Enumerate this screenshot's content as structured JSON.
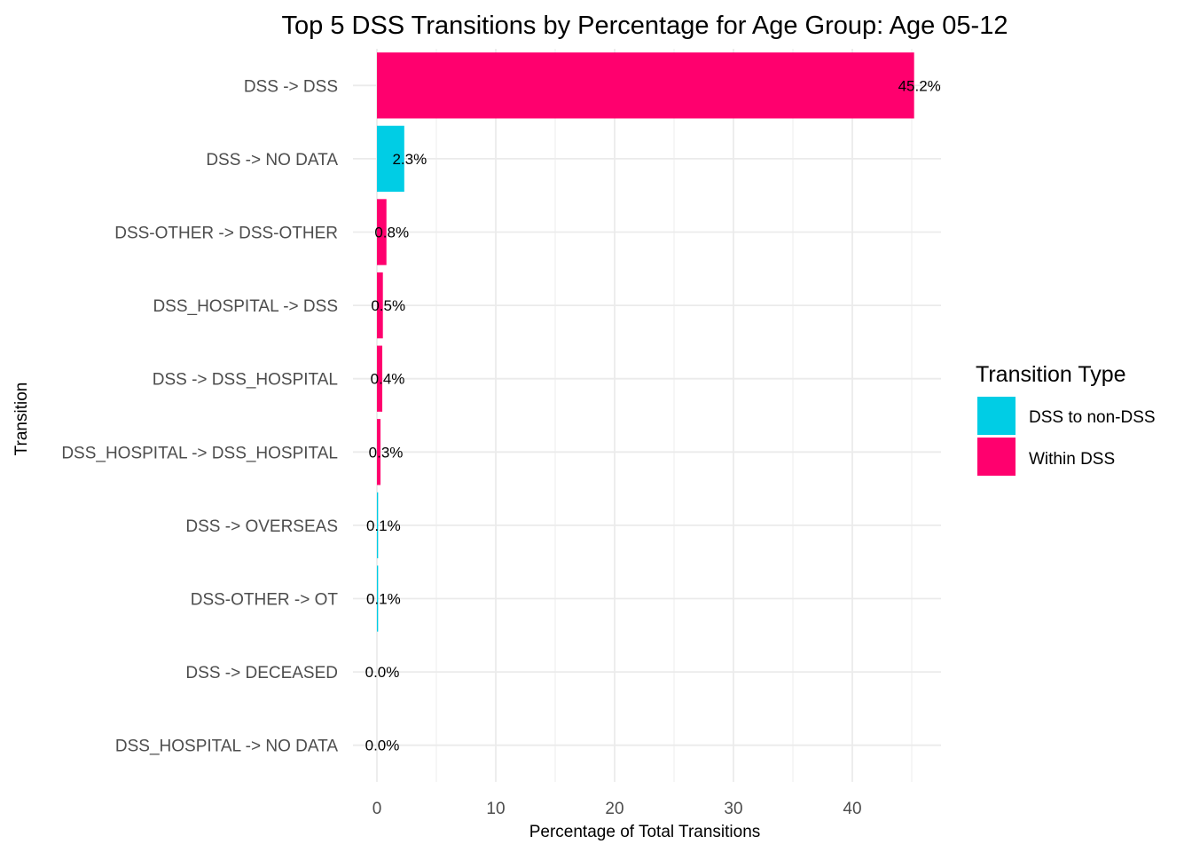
{
  "chart_data": {
    "type": "bar",
    "orientation": "horizontal",
    "title": "Top 5 DSS Transitions by Percentage for Age Group: Age 05-12",
    "xlabel": "Percentage of Total Transitions",
    "ylabel": "Transition",
    "xlim": [
      0,
      47
    ],
    "x_ticks": [
      0,
      10,
      20,
      30,
      40
    ],
    "grid": true,
    "legend": {
      "title": "Transition Type",
      "position": "right",
      "entries": [
        {
          "name": "DSS to non-DSS",
          "color": "#00CDE5"
        },
        {
          "name": "Within DSS",
          "color": "#FF006E"
        }
      ]
    },
    "bars": [
      {
        "category": "DSS -> DSS",
        "value": 45.2,
        "label": "45.2%",
        "type": "Within DSS"
      },
      {
        "category": "DSS -> NO DATA",
        "value": 2.3,
        "label": "2.3%",
        "type": "DSS to non-DSS"
      },
      {
        "category": "DSS-OTHER -> DSS-OTHER",
        "value": 0.8,
        "label": "0.8%",
        "type": "Within DSS"
      },
      {
        "category": "DSS_HOSPITAL -> DSS",
        "value": 0.5,
        "label": "0.5%",
        "type": "Within DSS"
      },
      {
        "category": "DSS -> DSS_HOSPITAL",
        "value": 0.45,
        "label": "0.4%",
        "type": "Within DSS"
      },
      {
        "category": "DSS_HOSPITAL -> DSS_HOSPITAL",
        "value": 0.3,
        "label": "0.3%",
        "type": "Within DSS"
      },
      {
        "category": "DSS -> OVERSEAS",
        "value": 0.1,
        "label": "0.1%",
        "type": "DSS to non-DSS"
      },
      {
        "category": "DSS-OTHER -> OT",
        "value": 0.1,
        "label": "0.1%",
        "type": "DSS to non-DSS"
      },
      {
        "category": "DSS -> DECEASED",
        "value": 0.0,
        "label": "0.0%",
        "type": "DSS to non-DSS"
      },
      {
        "category": "DSS_HOSPITAL -> NO DATA",
        "value": 0.0,
        "label": "0.0%",
        "type": "DSS to non-DSS"
      }
    ]
  }
}
